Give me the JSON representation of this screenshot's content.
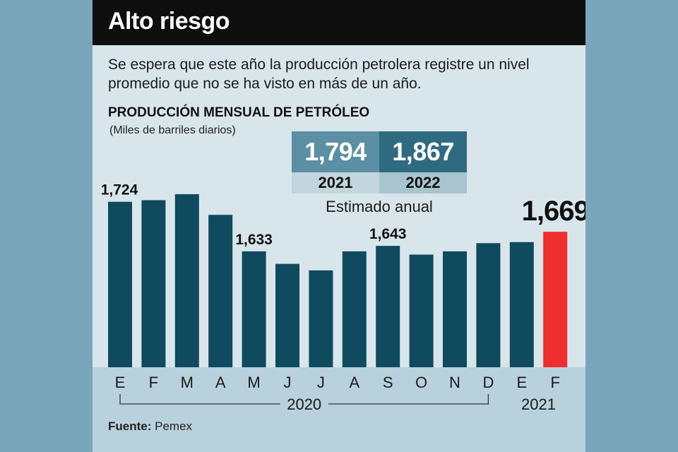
{
  "title": "Alto riesgo",
  "subtitle": "Se espera que este año la producción petrolera registre un nivel promedio que no se ha visto en más de un año.",
  "estimate": {
    "label": "Estimado anual",
    "items": [
      {
        "year": "2021",
        "value": "1,794"
      },
      {
        "year": "2022",
        "value": "1,867"
      }
    ]
  },
  "source": {
    "label": "Fuente:",
    "name": "Pemex"
  },
  "colors": {
    "bar": "#0f4a5e",
    "highlight": "#ee2f2e",
    "header": "#0e0e0e"
  },
  "chart_data": {
    "type": "bar",
    "title": "PRODUCCIÓN MENSUAL DE PETRÓLEO",
    "ylabel": "(Miles de barriles diarios)",
    "categories": [
      "E",
      "F",
      "M",
      "A",
      "M",
      "J",
      "J",
      "A",
      "S",
      "O",
      "N",
      "D",
      "E",
      "F"
    ],
    "values": [
      1724,
      1727,
      1738,
      1700,
      1633,
      1610,
      1598,
      1633,
      1643,
      1627,
      1633,
      1648,
      1650,
      1669
    ],
    "data_labels": [
      "1,724",
      null,
      null,
      null,
      "1,633",
      null,
      null,
      null,
      "1,643",
      null,
      null,
      null,
      null,
      "1,669"
    ],
    "highlight_index": 13,
    "ylim": [
      1420,
      1760
    ],
    "year_groups": [
      {
        "label": "2020",
        "start": 0,
        "end": 11
      },
      {
        "label": "2021",
        "start": 12,
        "end": 13
      }
    ]
  }
}
